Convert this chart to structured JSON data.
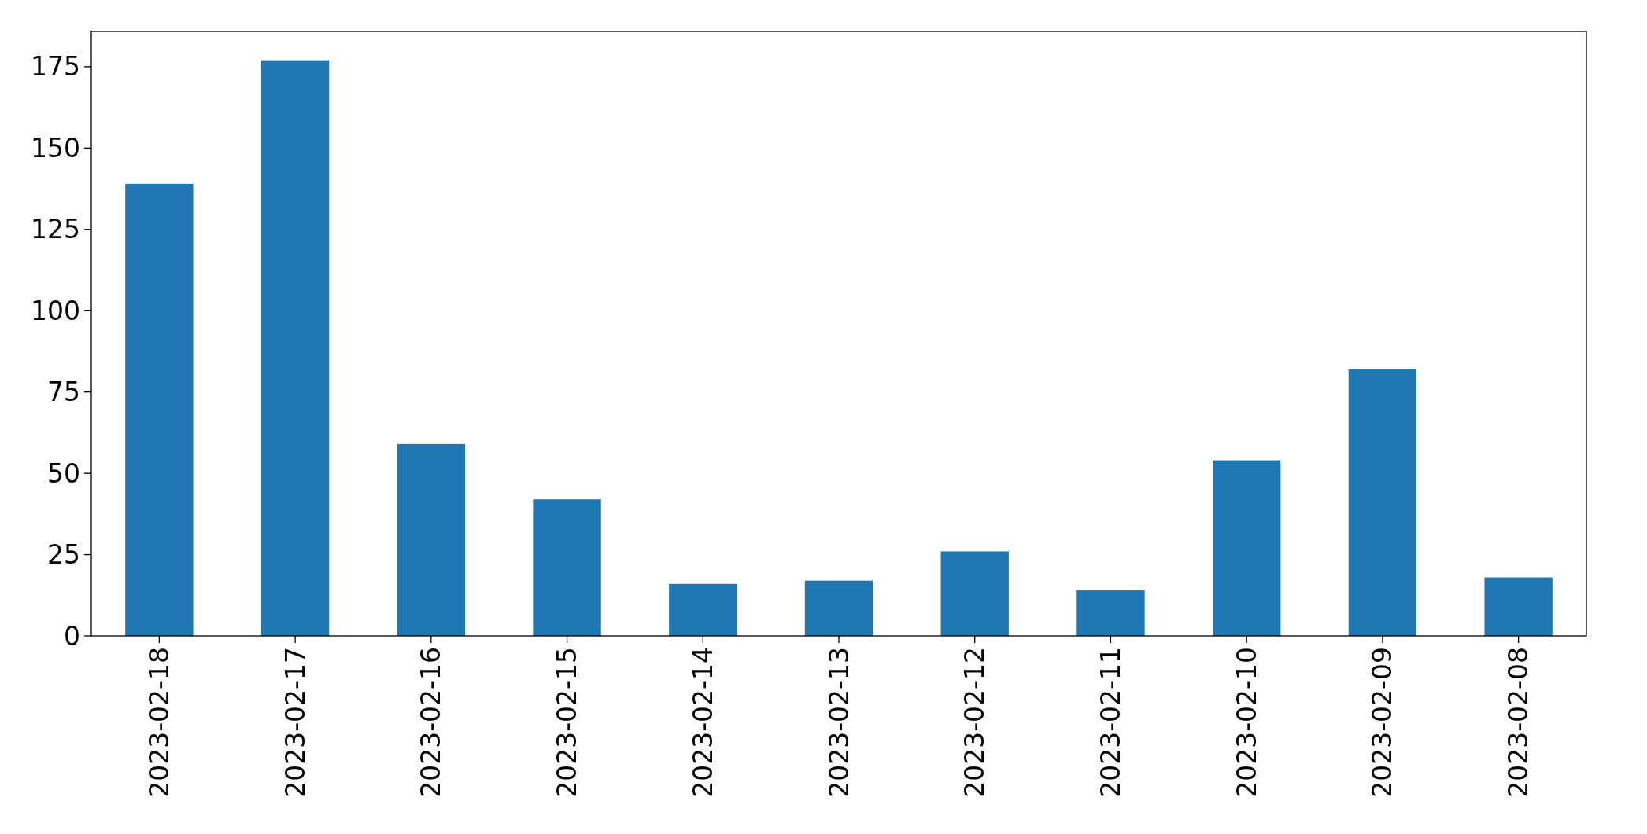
{
  "chart_data": {
    "type": "bar",
    "categories": [
      "2023-02-18",
      "2023-02-17",
      "2023-02-16",
      "2023-02-15",
      "2023-02-14",
      "2023-02-13",
      "2023-02-12",
      "2023-02-11",
      "2023-02-10",
      "2023-02-09",
      "2023-02-08"
    ],
    "values": [
      139,
      177,
      59,
      42,
      16,
      17,
      26,
      14,
      54,
      82,
      18
    ],
    "color": "#1f77b4",
    "ylim": [
      0,
      185.85
    ],
    "yticks": [
      0,
      25,
      50,
      75,
      100,
      125,
      150,
      175
    ],
    "grid": false
  }
}
